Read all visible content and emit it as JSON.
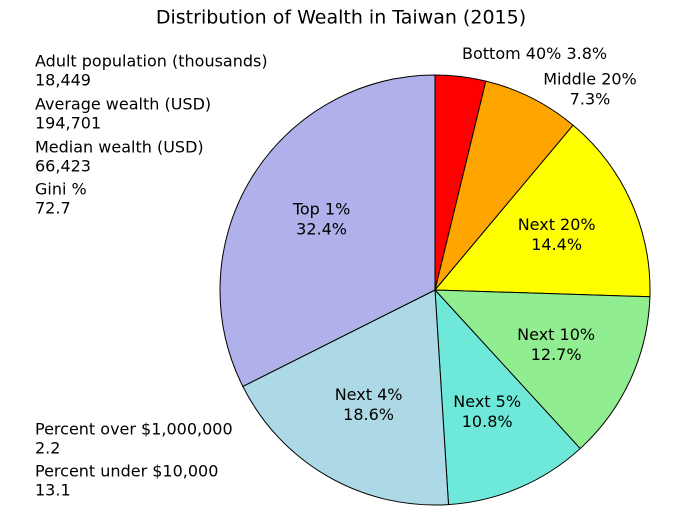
{
  "chart_data": {
    "type": "pie",
    "title": "Distribution of Wealth in Taiwan (2015)",
    "categories": [
      "Bottom 40%",
      "Middle 20%",
      "Next 20%",
      "Next 10%",
      "Next 5%",
      "Next 4%",
      "Top 1%"
    ],
    "values": [
      3.8,
      7.3,
      14.4,
      12.7,
      10.8,
      18.6,
      32.4
    ],
    "value_labels": [
      "3.8%",
      "7.3%",
      "14.4%",
      "12.7%",
      "10.8%",
      "18.6%",
      "32.4%"
    ],
    "colors": [
      "#ff0000",
      "#ffa500",
      "#ffff00",
      "#90ee90",
      "#6ee8d8",
      "#add8e6",
      "#b0b0ea"
    ],
    "annotations": [
      {
        "label": "Adult population (thousands)",
        "value": "18,449"
      },
      {
        "label": "Average wealth (USD)",
        "value": "194,701"
      },
      {
        "label": "Median wealth (USD)",
        "value": "66,423"
      },
      {
        "label": "Gini %",
        "value": "72.7"
      },
      {
        "label": "Percent over $1,000,000",
        "value": "2.2"
      },
      {
        "label": "Percent under $10,000",
        "value": "13.1"
      }
    ]
  }
}
